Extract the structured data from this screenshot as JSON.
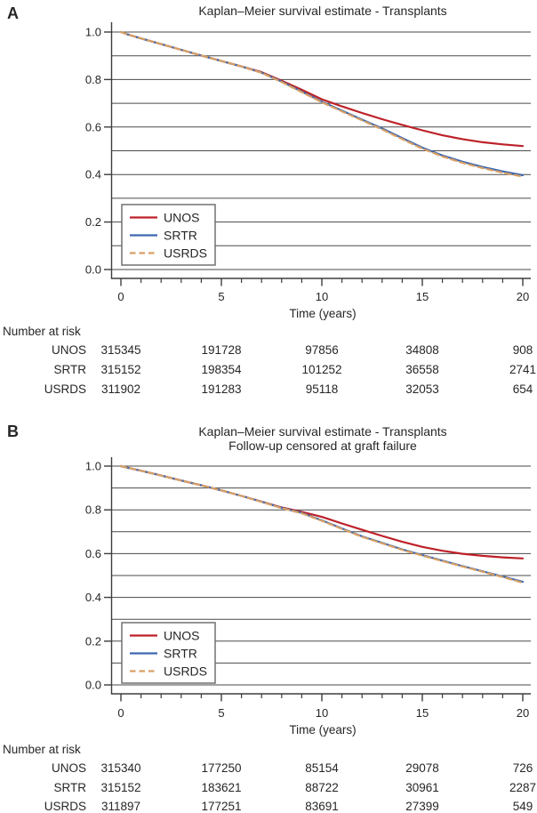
{
  "colors": {
    "unos": "#bd2129",
    "srtr": "#3d68b0",
    "usrds": "#d7a065",
    "grid": "#4a4a4a",
    "axis": "#3d3d3d",
    "text": "#262626",
    "legend_border": "#707070",
    "background": "#ffffff"
  },
  "chart_data": [
    {
      "type": "line",
      "panel_label": "A",
      "title_lines": [
        "Kaplan–Meier survival estimate - Transplants"
      ],
      "xlabel": "Time (years)",
      "xlim": [
        0,
        20
      ],
      "ylim": [
        0,
        1
      ],
      "x_ticks": [
        0,
        5,
        10,
        15,
        20
      ],
      "x_tick_labels": [
        "0",
        "5",
        "10",
        "15",
        "20"
      ],
      "x_minor_step": 1,
      "y_ticks": [
        0,
        0.2,
        0.4,
        0.6,
        0.8,
        1.0
      ],
      "y_tick_labels": [
        "0.0",
        "0.2",
        "0.4",
        "0.6",
        "0.8",
        "1.0"
      ],
      "y_grid_step": 0.1,
      "grid": "horizontal every 0.1",
      "legend_position": "lower left",
      "series": [
        {
          "name": "UNOS",
          "color_key": "unos",
          "dash": false,
          "points": [
            [
              0,
              1.0
            ],
            [
              0.3,
              0.991
            ],
            [
              1,
              0.973
            ],
            [
              2,
              0.949
            ],
            [
              3,
              0.925
            ],
            [
              4,
              0.901
            ],
            [
              5,
              0.878
            ],
            [
              6,
              0.855
            ],
            [
              7,
              0.831
            ],
            [
              8,
              0.795
            ],
            [
              9,
              0.757
            ],
            [
              10,
              0.717
            ],
            [
              11,
              0.687
            ],
            [
              12,
              0.659
            ],
            [
              13,
              0.633
            ],
            [
              14,
              0.609
            ],
            [
              15,
              0.586
            ],
            [
              16,
              0.565
            ],
            [
              17,
              0.549
            ],
            [
              18,
              0.536
            ],
            [
              19,
              0.527
            ],
            [
              20,
              0.52
            ]
          ]
        },
        {
          "name": "SRTR",
          "color_key": "srtr",
          "dash": false,
          "points": [
            [
              0,
              1.0
            ],
            [
              0.3,
              0.991
            ],
            [
              1,
              0.973
            ],
            [
              2,
              0.949
            ],
            [
              3,
              0.925
            ],
            [
              4,
              0.901
            ],
            [
              5,
              0.878
            ],
            [
              6,
              0.855
            ],
            [
              7,
              0.829
            ],
            [
              8,
              0.791
            ],
            [
              9,
              0.749
            ],
            [
              10,
              0.707
            ],
            [
              11,
              0.669
            ],
            [
              12,
              0.631
            ],
            [
              13,
              0.594
            ],
            [
              14,
              0.553
            ],
            [
              15,
              0.513
            ],
            [
              16,
              0.48
            ],
            [
              17,
              0.454
            ],
            [
              18,
              0.432
            ],
            [
              19,
              0.413
            ],
            [
              20,
              0.397
            ]
          ]
        },
        {
          "name": "USRDS",
          "color_key": "usrds",
          "dash": true,
          "points": [
            [
              0,
              1.0
            ],
            [
              0.3,
              0.991
            ],
            [
              1,
              0.973
            ],
            [
              2,
              0.949
            ],
            [
              3,
              0.925
            ],
            [
              4,
              0.901
            ],
            [
              5,
              0.878
            ],
            [
              6,
              0.855
            ],
            [
              7,
              0.828
            ],
            [
              8,
              0.789
            ],
            [
              9,
              0.747
            ],
            [
              10,
              0.704
            ],
            [
              11,
              0.666
            ],
            [
              12,
              0.628
            ],
            [
              13,
              0.59
            ],
            [
              14,
              0.549
            ],
            [
              15,
              0.509
            ],
            [
              16,
              0.476
            ],
            [
              17,
              0.449
            ],
            [
              18,
              0.427
            ],
            [
              19,
              0.408
            ],
            [
              20,
              0.391
            ]
          ]
        }
      ],
      "risk_table": {
        "header": "Number at risk",
        "times": [
          0,
          5,
          10,
          15,
          20
        ],
        "rows": [
          {
            "name": "UNOS",
            "values": [
              "315345",
              "191728",
              "97856",
              "34808",
              "908"
            ]
          },
          {
            "name": "SRTR",
            "values": [
              "315152",
              "198354",
              "101252",
              "36558",
              "2741"
            ]
          },
          {
            "name": "USRDS",
            "values": [
              "311902",
              "191283",
              "95118",
              "32053",
              "654"
            ]
          }
        ]
      }
    },
    {
      "type": "line",
      "panel_label": "B",
      "title_lines": [
        "Kaplan–Meier survival estimate - Transplants",
        "Follow-up censored at graft failure"
      ],
      "xlabel": "Time (years)",
      "xlim": [
        0,
        20
      ],
      "ylim": [
        0,
        1
      ],
      "x_ticks": [
        0,
        5,
        10,
        15,
        20
      ],
      "x_tick_labels": [
        "0",
        "5",
        "10",
        "15",
        "20"
      ],
      "x_minor_step": 1,
      "y_ticks": [
        0,
        0.2,
        0.4,
        0.6,
        0.8,
        1.0
      ],
      "y_tick_labels": [
        "0.0",
        "0.2",
        "0.4",
        "0.6",
        "0.8",
        "1.0"
      ],
      "y_grid_step": 0.1,
      "grid": "horizontal every 0.1",
      "legend_position": "lower left",
      "series": [
        {
          "name": "UNOS",
          "color_key": "unos",
          "dash": false,
          "points": [
            [
              0,
              1.0
            ],
            [
              0.3,
              0.993
            ],
            [
              1,
              0.979
            ],
            [
              2,
              0.957
            ],
            [
              3,
              0.934
            ],
            [
              4,
              0.912
            ],
            [
              5,
              0.889
            ],
            [
              6,
              0.864
            ],
            [
              7,
              0.838
            ],
            [
              8,
              0.811
            ],
            [
              9,
              0.791
            ],
            [
              10,
              0.768
            ],
            [
              11,
              0.738
            ],
            [
              12,
              0.709
            ],
            [
              13,
              0.681
            ],
            [
              14,
              0.654
            ],
            [
              15,
              0.631
            ],
            [
              16,
              0.613
            ],
            [
              17,
              0.599
            ],
            [
              18,
              0.59
            ],
            [
              19,
              0.583
            ],
            [
              20,
              0.578
            ]
          ]
        },
        {
          "name": "SRTR",
          "color_key": "srtr",
          "dash": false,
          "points": [
            [
              0,
              1.0
            ],
            [
              0.3,
              0.993
            ],
            [
              1,
              0.979
            ],
            [
              2,
              0.957
            ],
            [
              3,
              0.934
            ],
            [
              4,
              0.912
            ],
            [
              5,
              0.889
            ],
            [
              6,
              0.864
            ],
            [
              7,
              0.837
            ],
            [
              8,
              0.809
            ],
            [
              9,
              0.786
            ],
            [
              10,
              0.752
            ],
            [
              11,
              0.715
            ],
            [
              12,
              0.679
            ],
            [
              13,
              0.649
            ],
            [
              14,
              0.619
            ],
            [
              15,
              0.593
            ],
            [
              16,
              0.568
            ],
            [
              17,
              0.543
            ],
            [
              18,
              0.519
            ],
            [
              19,
              0.495
            ],
            [
              20,
              0.471
            ]
          ]
        },
        {
          "name": "USRDS",
          "color_key": "usrds",
          "dash": true,
          "points": [
            [
              0,
              1.0
            ],
            [
              0.3,
              0.993
            ],
            [
              1,
              0.979
            ],
            [
              2,
              0.957
            ],
            [
              3,
              0.934
            ],
            [
              4,
              0.912
            ],
            [
              5,
              0.889
            ],
            [
              6,
              0.864
            ],
            [
              7,
              0.836
            ],
            [
              8,
              0.808
            ],
            [
              9,
              0.784
            ],
            [
              10,
              0.75
            ],
            [
              11,
              0.713
            ],
            [
              12,
              0.677
            ],
            [
              13,
              0.647
            ],
            [
              14,
              0.617
            ],
            [
              15,
              0.591
            ],
            [
              16,
              0.566
            ],
            [
              17,
              0.541
            ],
            [
              18,
              0.517
            ],
            [
              19,
              0.493
            ],
            [
              20,
              0.467
            ]
          ]
        }
      ],
      "risk_table": {
        "header": "Number at risk",
        "times": [
          0,
          5,
          10,
          15,
          20
        ],
        "rows": [
          {
            "name": "UNOS",
            "values": [
              "315340",
              "177250",
              "85154",
              "29078",
              "726"
            ]
          },
          {
            "name": "SRTR",
            "values": [
              "315152",
              "183621",
              "88722",
              "30961",
              "2287"
            ]
          },
          {
            "name": "USRDS",
            "values": [
              "311897",
              "177251",
              "83691",
              "27399",
              "549"
            ]
          }
        ]
      }
    }
  ]
}
